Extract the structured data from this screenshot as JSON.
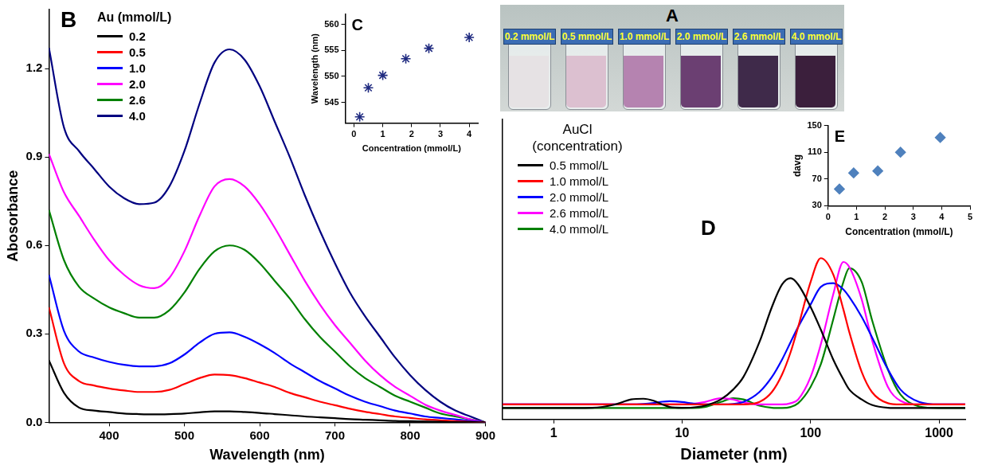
{
  "photo": {
    "title": "A",
    "labels": [
      "0.2 mmol/L",
      "0.5 mmol/L",
      "1.0 mmol/L",
      "2.0 mmol/L",
      "2.6 mmol/L",
      "4.0 mmol/L"
    ],
    "colors": [
      "#e6e2e4",
      "#dcc0d0",
      "#b583b0",
      "#6b3f72",
      "#3f2a4a",
      "#3b1f3c"
    ]
  },
  "chart_data": [
    {
      "title": "B",
      "type": "line",
      "x_label": "Wavelength (nm)",
      "y_label": "Abosorbance",
      "legend_title": "Au (mmol/L)",
      "legend": "upper left",
      "grid": false,
      "x": [
        320,
        340,
        360,
        380,
        400,
        420,
        440,
        460,
        480,
        500,
        520,
        540,
        560,
        580,
        600,
        620,
        640,
        660,
        680,
        700,
        720,
        740,
        760,
        780,
        800,
        820,
        840,
        860,
        880,
        900
      ],
      "series": [
        {
          "name": "0.2",
          "color": "#000000",
          "values": [
            0.21,
            0.1,
            0.05,
            0.04,
            0.035,
            0.03,
            0.028,
            0.027,
            0.028,
            0.03,
            0.034,
            0.037,
            0.037,
            0.035,
            0.032,
            0.028,
            0.024,
            0.02,
            0.017,
            0.014,
            0.011,
            0.009,
            0.007,
            0.005,
            0.004,
            0.003,
            0.002,
            0.001,
            0.001,
            0.0
          ]
        },
        {
          "name": "0.5",
          "color": "#ff0000",
          "values": [
            0.39,
            0.2,
            0.14,
            0.125,
            0.115,
            0.108,
            0.103,
            0.103,
            0.11,
            0.13,
            0.15,
            0.162,
            0.16,
            0.15,
            0.135,
            0.12,
            0.1,
            0.085,
            0.07,
            0.058,
            0.046,
            0.036,
            0.028,
            0.02,
            0.015,
            0.01,
            0.007,
            0.004,
            0.002,
            0.0
          ]
        },
        {
          "name": "1.0",
          "color": "#0000ff",
          "values": [
            0.5,
            0.31,
            0.24,
            0.22,
            0.205,
            0.195,
            0.19,
            0.19,
            0.2,
            0.23,
            0.27,
            0.3,
            0.305,
            0.29,
            0.265,
            0.235,
            0.2,
            0.17,
            0.14,
            0.115,
            0.09,
            0.07,
            0.055,
            0.04,
            0.03,
            0.02,
            0.015,
            0.01,
            0.005,
            0.0
          ]
        },
        {
          "name": "2.0",
          "color": "#ff00ff",
          "values": [
            0.91,
            0.78,
            0.7,
            0.62,
            0.55,
            0.5,
            0.465,
            0.455,
            0.49,
            0.58,
            0.7,
            0.8,
            0.825,
            0.8,
            0.74,
            0.66,
            0.57,
            0.48,
            0.4,
            0.33,
            0.27,
            0.21,
            0.16,
            0.12,
            0.09,
            0.06,
            0.04,
            0.025,
            0.01,
            0.0
          ]
        },
        {
          "name": "2.6",
          "color": "#008000",
          "values": [
            0.72,
            0.55,
            0.46,
            0.42,
            0.39,
            0.37,
            0.355,
            0.355,
            0.38,
            0.44,
            0.52,
            0.58,
            0.6,
            0.585,
            0.54,
            0.48,
            0.42,
            0.35,
            0.29,
            0.24,
            0.19,
            0.15,
            0.12,
            0.09,
            0.07,
            0.05,
            0.03,
            0.02,
            0.01,
            0.0
          ]
        },
        {
          "name": "4.0",
          "color": "#000080",
          "values": [
            1.27,
            1.0,
            0.92,
            0.86,
            0.8,
            0.76,
            0.74,
            0.745,
            0.8,
            0.92,
            1.08,
            1.22,
            1.265,
            1.23,
            1.14,
            1.02,
            0.9,
            0.77,
            0.65,
            0.54,
            0.44,
            0.36,
            0.29,
            0.22,
            0.16,
            0.11,
            0.07,
            0.04,
            0.02,
            0.0
          ]
        }
      ],
      "xlim": [
        320,
        900
      ],
      "xticks": [
        400,
        500,
        600,
        700,
        800,
        900
      ],
      "ylim": [
        0,
        1.4
      ],
      "yticks": [
        {
          "value": 0,
          "label": "0.0"
        },
        0.3,
        0.6,
        0.9,
        1.2
      ]
    },
    {
      "title": "C",
      "type": "scatter",
      "x_label": "Concentration (mmol/L)",
      "y_label": "Wavelength (nm)",
      "grid": false,
      "color": "#1f2a80",
      "marker": "star",
      "x": [
        0.2,
        0.5,
        1.0,
        1.8,
        2.6,
        4.0
      ],
      "values": [
        542.2,
        547.8,
        550.2,
        553.4,
        555.4,
        557.5
      ],
      "xlim": [
        -0.3,
        4.3
      ],
      "xticks": [
        0,
        1,
        2,
        3,
        4
      ],
      "ylim": [
        541,
        562
      ],
      "yticks": [
        545,
        550,
        555,
        560
      ]
    },
    {
      "title": "D",
      "type": "line",
      "log": "x",
      "x_label": "Diameter (nm)",
      "legend_title": "AuCl (concentration)",
      "legend": "upper left",
      "grid": false,
      "tick_labels": "x",
      "x": [
        0.4,
        1,
        2,
        3,
        4,
        5,
        6,
        7,
        8,
        10,
        12,
        15,
        20,
        25,
        30,
        40,
        50,
        60,
        70,
        80,
        100,
        120,
        150,
        180,
        200,
        250,
        300,
        400,
        500,
        700,
        1000,
        1600
      ],
      "series": [
        {
          "name": "0.5 mmol/L",
          "color": "#000000",
          "values": [
            0.046,
            0.046,
            0.047,
            0.06,
            0.08,
            0.083,
            0.075,
            0.06,
            0.05,
            0.047,
            0.048,
            0.055,
            0.08,
            0.12,
            0.17,
            0.31,
            0.45,
            0.54,
            0.565,
            0.54,
            0.45,
            0.36,
            0.24,
            0.16,
            0.12,
            0.08,
            0.058,
            0.047,
            0.046,
            0.046,
            0.046,
            0.046
          ]
        },
        {
          "name": "1.0 mmol/L",
          "color": "#ff0000",
          "values": [
            0.06,
            0.06,
            0.06,
            0.06,
            0.06,
            0.06,
            0.06,
            0.06,
            0.06,
            0.06,
            0.06,
            0.06,
            0.06,
            0.06,
            0.06,
            0.07,
            0.11,
            0.18,
            0.27,
            0.37,
            0.55,
            0.645,
            0.58,
            0.44,
            0.35,
            0.19,
            0.11,
            0.065,
            0.06,
            0.06,
            0.06,
            0.06
          ]
        },
        {
          "name": "2.0 mmol/L",
          "color": "#0000ff",
          "values": [
            0.06,
            0.06,
            0.06,
            0.06,
            0.06,
            0.062,
            0.066,
            0.071,
            0.073,
            0.07,
            0.064,
            0.06,
            0.06,
            0.062,
            0.07,
            0.11,
            0.17,
            0.24,
            0.31,
            0.37,
            0.46,
            0.53,
            0.545,
            0.52,
            0.49,
            0.41,
            0.33,
            0.2,
            0.12,
            0.07,
            0.06,
            0.06
          ]
        },
        {
          "name": "2.6 mmol/L",
          "color": "#ff00ff",
          "values": [
            0.06,
            0.06,
            0.06,
            0.06,
            0.06,
            0.06,
            0.06,
            0.06,
            0.06,
            0.06,
            0.062,
            0.07,
            0.085,
            0.08,
            0.068,
            0.06,
            0.06,
            0.06,
            0.065,
            0.08,
            0.17,
            0.3,
            0.5,
            0.63,
            0.61,
            0.48,
            0.32,
            0.13,
            0.075,
            0.06,
            0.06,
            0.06
          ]
        },
        {
          "name": "4.0 mmol/L",
          "color": "#008000",
          "values": [
            0.046,
            0.046,
            0.046,
            0.046,
            0.046,
            0.046,
            0.046,
            0.046,
            0.046,
            0.046,
            0.046,
            0.05,
            0.07,
            0.085,
            0.08,
            0.055,
            0.047,
            0.046,
            0.05,
            0.065,
            0.13,
            0.22,
            0.4,
            0.55,
            0.605,
            0.55,
            0.4,
            0.2,
            0.1,
            0.052,
            0.046,
            0.046
          ]
        }
      ],
      "xlim": [
        0.4,
        1600
      ],
      "xticks": [
        1,
        10,
        100,
        1000
      ],
      "ylim": [
        0,
        1.2
      ]
    },
    {
      "title": "E",
      "type": "scatter",
      "x_label": "Concentration (mmol/L)",
      "y_label": "davg",
      "grid": false,
      "color": "#4f81bd",
      "marker": "diamond",
      "x": [
        0.4,
        0.9,
        1.75,
        2.55,
        3.95
      ],
      "values": [
        55,
        79,
        82,
        110,
        132
      ],
      "xlim": [
        0,
        5
      ],
      "xticks": [
        0,
        1,
        2,
        3,
        4,
        5
      ],
      "ylim": [
        30,
        150
      ],
      "yticks": [
        30,
        70,
        110,
        150
      ]
    }
  ]
}
